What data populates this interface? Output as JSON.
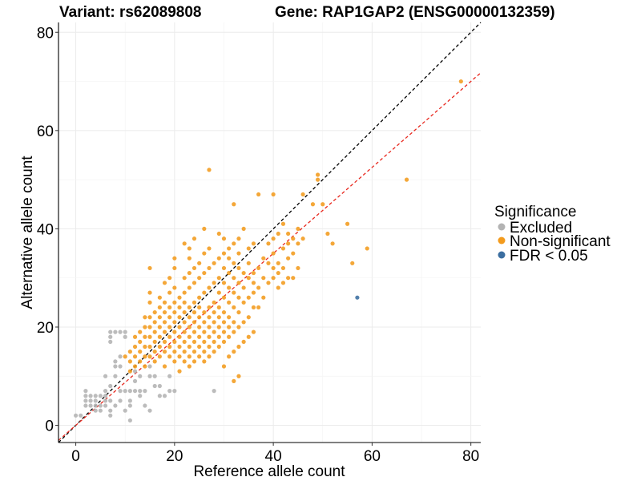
{
  "chart_data": {
    "type": "scatter",
    "title_left": "Variant: rs62089808",
    "title_right": "Gene: RAP1GAP2 (ENSG00000132359)",
    "xlabel": "Reference allele count",
    "ylabel": "Alternative allele count",
    "xlim": [
      -3.5,
      82
    ],
    "ylim": [
      -3.5,
      82
    ],
    "xticks": [
      0,
      20,
      40,
      60,
      80
    ],
    "yticks": [
      0,
      20,
      40,
      60,
      80
    ],
    "grid": true,
    "legend": {
      "title": "Significance",
      "position": "right",
      "entries": [
        {
          "label": "Excluded",
          "color": "#b3b3b3"
        },
        {
          "label": "Non-significant",
          "color": "#f39b1d"
        },
        {
          "label": "FDR < 0.05",
          "color": "#3b6ea0"
        }
      ]
    },
    "reference_lines": [
      {
        "name": "identity",
        "slope": 1,
        "intercept": 0,
        "color": "#000000",
        "dash": "dashed"
      },
      {
        "name": "fit",
        "slope": 0.875,
        "intercept": 0,
        "color": "#e8281e",
        "dash": "dashed"
      }
    ],
    "series": [
      {
        "name": "Excluded",
        "color": "#b3b3b3",
        "points": [
          [
            0,
            2
          ],
          [
            1,
            2
          ],
          [
            2,
            4
          ],
          [
            2,
            6
          ],
          [
            2,
            7
          ],
          [
            2,
            5
          ],
          [
            3,
            5
          ],
          [
            3,
            6
          ],
          [
            4,
            3
          ],
          [
            4,
            5
          ],
          [
            4,
            6
          ],
          [
            5,
            3
          ],
          [
            5,
            6
          ],
          [
            6,
            4
          ],
          [
            6,
            5
          ],
          [
            6,
            7
          ],
          [
            6,
            10
          ],
          [
            7,
            2
          ],
          [
            7,
            3
          ],
          [
            7,
            5
          ],
          [
            7,
            8
          ],
          [
            8,
            10
          ],
          [
            8,
            12
          ],
          [
            8,
            13
          ],
          [
            9,
            7
          ],
          [
            9,
            12
          ],
          [
            9,
            14
          ],
          [
            8,
            19
          ],
          [
            7,
            17
          ],
          [
            7,
            18
          ],
          [
            7,
            19
          ],
          [
            9,
            19
          ],
          [
            10,
            18
          ],
          [
            10,
            19
          ],
          [
            10,
            3
          ],
          [
            10,
            7
          ],
          [
            11,
            1
          ],
          [
            11,
            4
          ],
          [
            11,
            5
          ],
          [
            11,
            7
          ],
          [
            12,
            7
          ],
          [
            12,
            9
          ],
          [
            13,
            6
          ],
          [
            13,
            7
          ],
          [
            14,
            7
          ],
          [
            14,
            4
          ],
          [
            15,
            3
          ],
          [
            15,
            10
          ],
          [
            15,
            12
          ],
          [
            16,
            8
          ],
          [
            16,
            10
          ],
          [
            17,
            6
          ],
          [
            17,
            8
          ],
          [
            18,
            6
          ],
          [
            19,
            7
          ],
          [
            19,
            10
          ],
          [
            20,
            7
          ],
          [
            28,
            7
          ],
          [
            8,
            4
          ],
          [
            9,
            5
          ],
          [
            6,
            6
          ],
          [
            5,
            4
          ],
          [
            4,
            4
          ],
          [
            3,
            4
          ],
          [
            12,
            11
          ],
          [
            13,
            10
          ]
        ]
      },
      {
        "name": "Non-significant",
        "color": "#f39b1d",
        "points": [
          [
            10,
            14
          ],
          [
            11,
            11
          ],
          [
            11,
            13
          ],
          [
            11,
            15
          ],
          [
            12,
            12
          ],
          [
            12,
            14
          ],
          [
            12,
            16
          ],
          [
            12,
            18
          ],
          [
            13,
            13
          ],
          [
            13,
            15
          ],
          [
            13,
            17
          ],
          [
            13,
            19
          ],
          [
            14,
            12
          ],
          [
            14,
            14
          ],
          [
            14,
            16
          ],
          [
            14,
            18
          ],
          [
            14,
            20
          ],
          [
            14,
            22
          ],
          [
            15,
            14
          ],
          [
            15,
            16
          ],
          [
            15,
            18
          ],
          [
            15,
            20
          ],
          [
            15,
            22
          ],
          [
            15,
            25
          ],
          [
            15,
            27
          ],
          [
            15,
            32
          ],
          [
            16,
            13
          ],
          [
            16,
            15
          ],
          [
            16,
            17
          ],
          [
            16,
            19
          ],
          [
            16,
            21
          ],
          [
            16,
            23
          ],
          [
            17,
            14
          ],
          [
            17,
            16
          ],
          [
            17,
            18
          ],
          [
            17,
            20
          ],
          [
            17,
            22
          ],
          [
            17,
            24
          ],
          [
            17,
            26
          ],
          [
            18,
            12
          ],
          [
            18,
            15
          ],
          [
            18,
            17
          ],
          [
            18,
            19
          ],
          [
            18,
            21
          ],
          [
            18,
            23
          ],
          [
            18,
            25
          ],
          [
            18,
            29
          ],
          [
            19,
            14
          ],
          [
            19,
            16
          ],
          [
            19,
            18
          ],
          [
            19,
            20
          ],
          [
            19,
            22
          ],
          [
            19,
            24
          ],
          [
            19,
            27
          ],
          [
            19,
            30
          ],
          [
            20,
            13
          ],
          [
            20,
            15
          ],
          [
            20,
            17
          ],
          [
            20,
            19
          ],
          [
            20,
            21
          ],
          [
            20,
            23
          ],
          [
            20,
            25
          ],
          [
            20,
            28
          ],
          [
            20,
            32
          ],
          [
            20,
            34
          ],
          [
            21,
            11
          ],
          [
            21,
            14
          ],
          [
            21,
            16
          ],
          [
            21,
            18
          ],
          [
            21,
            20
          ],
          [
            21,
            22
          ],
          [
            21,
            24
          ],
          [
            21,
            26
          ],
          [
            22,
            13
          ],
          [
            22,
            15
          ],
          [
            22,
            17
          ],
          [
            22,
            19
          ],
          [
            22,
            21
          ],
          [
            22,
            23
          ],
          [
            22,
            25
          ],
          [
            22,
            27
          ],
          [
            22,
            30
          ],
          [
            22,
            37
          ],
          [
            23,
            12
          ],
          [
            23,
            14
          ],
          [
            23,
            16
          ],
          [
            23,
            18
          ],
          [
            23,
            20
          ],
          [
            23,
            22
          ],
          [
            23,
            24
          ],
          [
            23,
            28
          ],
          [
            23,
            31
          ],
          [
            23,
            34
          ],
          [
            23,
            36
          ],
          [
            24,
            13
          ],
          [
            24,
            15
          ],
          [
            24,
            17
          ],
          [
            24,
            19
          ],
          [
            24,
            21
          ],
          [
            24,
            23
          ],
          [
            24,
            25
          ],
          [
            24,
            29
          ],
          [
            24,
            32
          ],
          [
            24,
            38
          ],
          [
            25,
            14
          ],
          [
            25,
            16
          ],
          [
            25,
            18
          ],
          [
            25,
            20
          ],
          [
            25,
            22
          ],
          [
            25,
            24
          ],
          [
            25,
            26
          ],
          [
            25,
            30
          ],
          [
            25,
            33
          ],
          [
            26,
            13
          ],
          [
            26,
            15
          ],
          [
            26,
            17
          ],
          [
            26,
            19
          ],
          [
            26,
            21
          ],
          [
            26,
            23
          ],
          [
            26,
            27
          ],
          [
            26,
            31
          ],
          [
            26,
            35
          ],
          [
            26,
            40
          ],
          [
            27,
            14
          ],
          [
            27,
            16
          ],
          [
            27,
            18
          ],
          [
            27,
            20
          ],
          [
            27,
            22
          ],
          [
            27,
            24
          ],
          [
            27,
            28
          ],
          [
            27,
            32
          ],
          [
            27,
            36
          ],
          [
            27,
            52
          ],
          [
            28,
            15
          ],
          [
            28,
            17
          ],
          [
            28,
            19
          ],
          [
            28,
            21
          ],
          [
            28,
            23
          ],
          [
            28,
            25
          ],
          [
            28,
            29
          ],
          [
            28,
            33
          ],
          [
            29,
            16
          ],
          [
            29,
            18
          ],
          [
            29,
            20
          ],
          [
            29,
            22
          ],
          [
            29,
            24
          ],
          [
            29,
            27
          ],
          [
            29,
            30
          ],
          [
            29,
            34
          ],
          [
            29,
            39
          ],
          [
            30,
            12
          ],
          [
            30,
            17
          ],
          [
            30,
            19
          ],
          [
            30,
            21
          ],
          [
            30,
            23
          ],
          [
            30,
            26
          ],
          [
            30,
            29
          ],
          [
            30,
            32
          ],
          [
            30,
            35
          ],
          [
            30,
            38
          ],
          [
            31,
            14
          ],
          [
            31,
            18
          ],
          [
            31,
            20
          ],
          [
            31,
            22
          ],
          [
            31,
            25
          ],
          [
            31,
            28
          ],
          [
            31,
            31
          ],
          [
            31,
            34
          ],
          [
            31,
            36
          ],
          [
            32,
            9
          ],
          [
            32,
            15
          ],
          [
            32,
            19
          ],
          [
            32,
            21
          ],
          [
            32,
            24
          ],
          [
            32,
            27
          ],
          [
            32,
            30
          ],
          [
            32,
            33
          ],
          [
            32,
            37
          ],
          [
            32,
            45
          ],
          [
            33,
            10
          ],
          [
            33,
            16
          ],
          [
            33,
            20
          ],
          [
            33,
            23
          ],
          [
            33,
            26
          ],
          [
            33,
            29
          ],
          [
            33,
            32
          ],
          [
            33,
            35
          ],
          [
            33,
            38
          ],
          [
            34,
            17
          ],
          [
            34,
            21
          ],
          [
            34,
            25
          ],
          [
            34,
            28
          ],
          [
            34,
            31
          ],
          [
            34,
            40
          ],
          [
            35,
            18
          ],
          [
            35,
            22
          ],
          [
            35,
            26
          ],
          [
            35,
            30
          ],
          [
            35,
            33
          ],
          [
            35,
            36
          ],
          [
            36,
            19
          ],
          [
            36,
            24
          ],
          [
            36,
            27
          ],
          [
            36,
            29
          ],
          [
            36,
            31
          ],
          [
            36,
            37
          ],
          [
            37,
            24
          ],
          [
            37,
            28
          ],
          [
            37,
            32
          ],
          [
            37,
            47
          ],
          [
            38,
            26
          ],
          [
            38,
            30
          ],
          [
            38,
            34
          ],
          [
            39,
            29
          ],
          [
            39,
            33
          ],
          [
            39,
            37
          ],
          [
            40,
            30
          ],
          [
            40,
            32
          ],
          [
            40,
            35
          ],
          [
            40,
            38
          ],
          [
            40,
            47
          ],
          [
            41,
            28
          ],
          [
            41,
            31
          ],
          [
            41,
            33
          ],
          [
            41,
            39
          ],
          [
            42,
            29
          ],
          [
            42,
            32
          ],
          [
            42,
            36
          ],
          [
            42,
            41
          ],
          [
            43,
            30
          ],
          [
            43,
            34
          ],
          [
            43,
            37
          ],
          [
            43,
            39
          ],
          [
            44,
            30
          ],
          [
            44,
            35
          ],
          [
            44,
            38
          ],
          [
            45,
            32
          ],
          [
            45,
            37
          ],
          [
            45,
            40
          ],
          [
            46,
            38
          ],
          [
            46,
            47
          ],
          [
            48,
            45
          ],
          [
            49,
            51
          ],
          [
            49,
            50
          ],
          [
            50,
            45
          ],
          [
            51,
            39
          ],
          [
            52,
            37
          ],
          [
            55,
            41
          ],
          [
            56,
            33
          ],
          [
            59,
            36
          ],
          [
            67,
            50
          ],
          [
            78,
            70
          ]
        ]
      },
      {
        "name": "FDR < 0.05",
        "color": "#3b6ea0",
        "points": [
          [
            57,
            26
          ]
        ]
      }
    ]
  }
}
